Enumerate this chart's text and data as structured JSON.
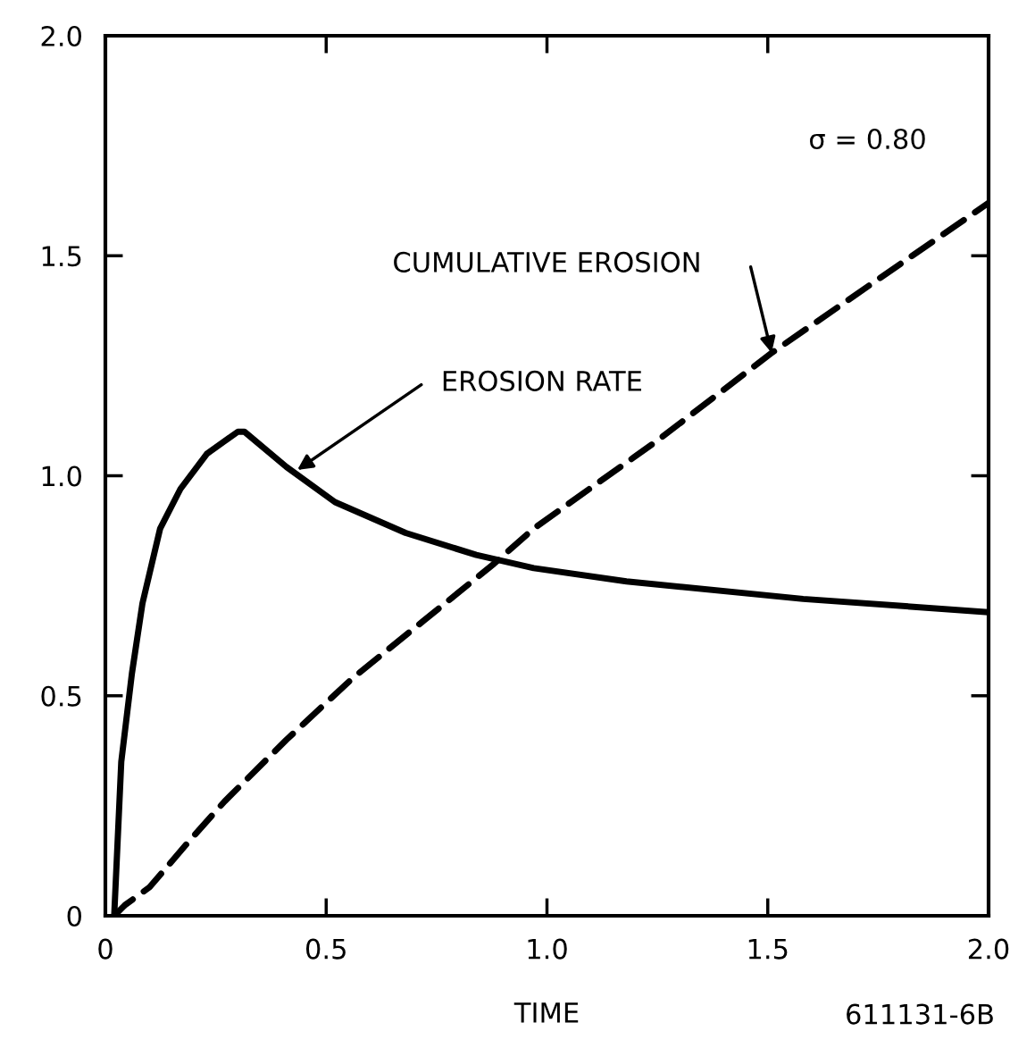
{
  "chart_data": {
    "type": "line",
    "xlabel": "TIME",
    "xlim": [
      0,
      2
    ],
    "ylim": [
      0,
      2
    ],
    "xticks": [
      0,
      0.5,
      {
        "value": 1,
        "label": "1.0"
      },
      1.5,
      {
        "value": 2,
        "label": "2.0"
      }
    ],
    "yticks": [
      0,
      0.5,
      {
        "value": 1,
        "label": "1.0"
      },
      1.5,
      {
        "value": 2,
        "label": "2.0"
      }
    ],
    "grid": false,
    "series": [
      {
        "color": "#000000",
        "line_style": "solid",
        "x": [
          0.02,
          0.036,
          0.06,
          0.084,
          0.124,
          0.17,
          0.23,
          0.3,
          0.315,
          0.41,
          0.52,
          0.68,
          0.84,
          0.97,
          1.18,
          1.58,
          2.0
        ],
        "values": [
          0,
          0.35,
          0.55,
          0.71,
          0.88,
          0.97,
          1.05,
          1.1,
          1.1,
          1.02,
          0.94,
          0.87,
          0.82,
          0.79,
          0.76,
          0.72,
          0.69
        ]
      },
      {
        "color": "#000000",
        "line_style": "dashed",
        "x": [
          0.02,
          0.044,
          0.1,
          0.19,
          0.27,
          0.41,
          0.56,
          0.72,
          0.88,
          0.97,
          1.25,
          1.51,
          2.0
        ],
        "values": [
          0,
          0.024,
          0.065,
          0.17,
          0.26,
          0.4,
          0.54,
          0.67,
          0.8,
          0.88,
          1.08,
          1.28,
          1.62
        ]
      }
    ],
    "annotations": [
      "EROSION RATE",
      "CUMULATIVE EROSION",
      "σ = 0.80",
      "611131-6B"
    ]
  }
}
